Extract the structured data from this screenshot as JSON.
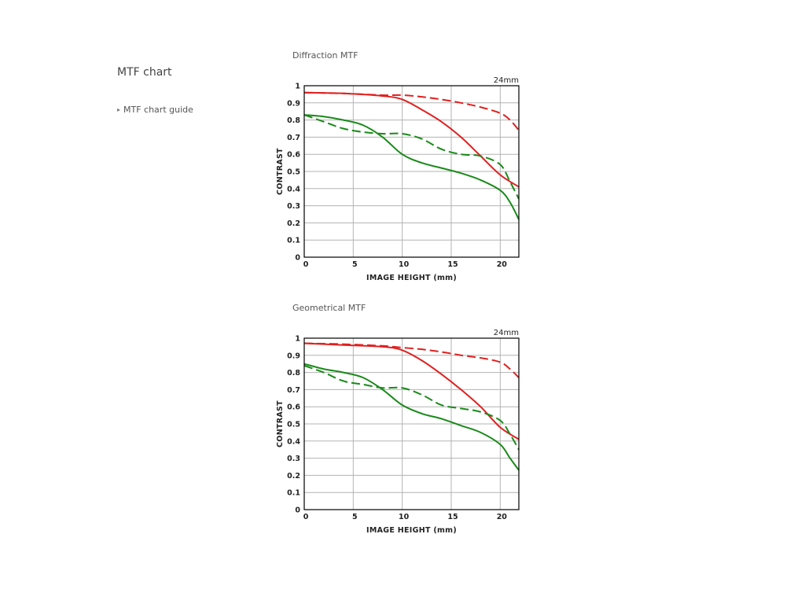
{
  "page": {
    "title": "MTF chart",
    "guide_link": "MTF chart guide"
  },
  "colors": {
    "red": "#e02020",
    "green": "#1a8a1a",
    "grid": "#b3b3b3",
    "frame": "#000000"
  },
  "chart_data": [
    {
      "type": "line",
      "title": "Diffraction MTF",
      "annotation": "24mm",
      "xlabel": "IMAGE HEIGHT (mm)",
      "ylabel": "CONTRAST",
      "xlim": [
        0,
        21.9
      ],
      "ylim": [
        0,
        1
      ],
      "xticks": [
        0,
        5,
        10,
        15,
        20
      ],
      "xtick_labels": [
        "0",
        "5",
        "10",
        "15",
        "20"
      ],
      "yticks": [
        0,
        0.1,
        0.2,
        0.3,
        0.4,
        0.5,
        0.6,
        0.7,
        0.8,
        0.9,
        1
      ],
      "ytick_labels": [
        "0",
        "0.1",
        "0.2",
        "0.3",
        "0.4",
        "0.5",
        "0.6",
        "0.7",
        "0.8",
        "0.9",
        "1"
      ],
      "grid": true,
      "series": [
        {
          "color": "red",
          "dash": "solid",
          "x": [
            0,
            4,
            8,
            10,
            12,
            14,
            16,
            18,
            20,
            21.9
          ],
          "y": [
            0.96,
            0.955,
            0.94,
            0.92,
            0.86,
            0.79,
            0.7,
            0.59,
            0.48,
            0.41
          ]
        },
        {
          "color": "red",
          "dash": "dashed",
          "x": [
            0,
            4,
            8,
            10,
            12,
            14,
            16,
            18,
            20,
            21,
            21.9
          ],
          "y": [
            0.96,
            0.955,
            0.945,
            0.945,
            0.935,
            0.92,
            0.9,
            0.875,
            0.84,
            0.8,
            0.74
          ]
        },
        {
          "color": "green",
          "dash": "solid",
          "x": [
            0,
            2,
            4,
            6,
            8,
            10,
            12,
            14,
            16,
            18,
            20,
            21,
            21.9
          ],
          "y": [
            0.83,
            0.82,
            0.8,
            0.77,
            0.7,
            0.6,
            0.55,
            0.52,
            0.49,
            0.45,
            0.39,
            0.32,
            0.22
          ]
        },
        {
          "color": "green",
          "dash": "dashed",
          "x": [
            0,
            2,
            4,
            6,
            8,
            10,
            12,
            14,
            16,
            18,
            20,
            21,
            21.9
          ],
          "y": [
            0.83,
            0.79,
            0.75,
            0.73,
            0.72,
            0.72,
            0.69,
            0.63,
            0.6,
            0.59,
            0.54,
            0.44,
            0.34
          ]
        }
      ]
    },
    {
      "type": "line",
      "title": "Geometrical MTF",
      "annotation": "24mm",
      "xlabel": "IMAGE HEIGHT (mm)",
      "ylabel": "CONTRAST",
      "xlim": [
        0,
        21.9
      ],
      "ylim": [
        0,
        1
      ],
      "xticks": [
        0,
        5,
        10,
        15,
        20
      ],
      "xtick_labels": [
        "0",
        "5",
        "10",
        "15",
        "20"
      ],
      "yticks": [
        0,
        0.1,
        0.2,
        0.3,
        0.4,
        0.5,
        0.6,
        0.7,
        0.8,
        0.9,
        1
      ],
      "ytick_labels": [
        "0",
        "0.1",
        "0.2",
        "0.3",
        "0.4",
        "0.5",
        "0.6",
        "0.7",
        "0.8",
        "0.9",
        "1"
      ],
      "grid": true,
      "series": [
        {
          "color": "red",
          "dash": "solid",
          "x": [
            0,
            4,
            8,
            10,
            12,
            14,
            16,
            18,
            20,
            21.9
          ],
          "y": [
            0.97,
            0.96,
            0.95,
            0.93,
            0.87,
            0.79,
            0.7,
            0.6,
            0.48,
            0.41
          ]
        },
        {
          "color": "red",
          "dash": "dashed",
          "x": [
            0,
            4,
            8,
            10,
            12,
            14,
            16,
            18,
            20,
            21,
            21.9
          ],
          "y": [
            0.97,
            0.965,
            0.955,
            0.945,
            0.935,
            0.92,
            0.9,
            0.885,
            0.86,
            0.82,
            0.77
          ]
        },
        {
          "color": "green",
          "dash": "solid",
          "x": [
            0,
            2,
            4,
            6,
            8,
            10,
            12,
            14,
            16,
            18,
            20,
            21,
            21.9
          ],
          "y": [
            0.85,
            0.82,
            0.8,
            0.77,
            0.7,
            0.61,
            0.56,
            0.53,
            0.49,
            0.45,
            0.38,
            0.3,
            0.23
          ]
        },
        {
          "color": "green",
          "dash": "dashed",
          "x": [
            0,
            2,
            4,
            6,
            8,
            10,
            12,
            14,
            16,
            18,
            20,
            21,
            21.9
          ],
          "y": [
            0.84,
            0.8,
            0.75,
            0.73,
            0.71,
            0.71,
            0.67,
            0.61,
            0.59,
            0.57,
            0.52,
            0.44,
            0.35
          ]
        }
      ]
    }
  ]
}
